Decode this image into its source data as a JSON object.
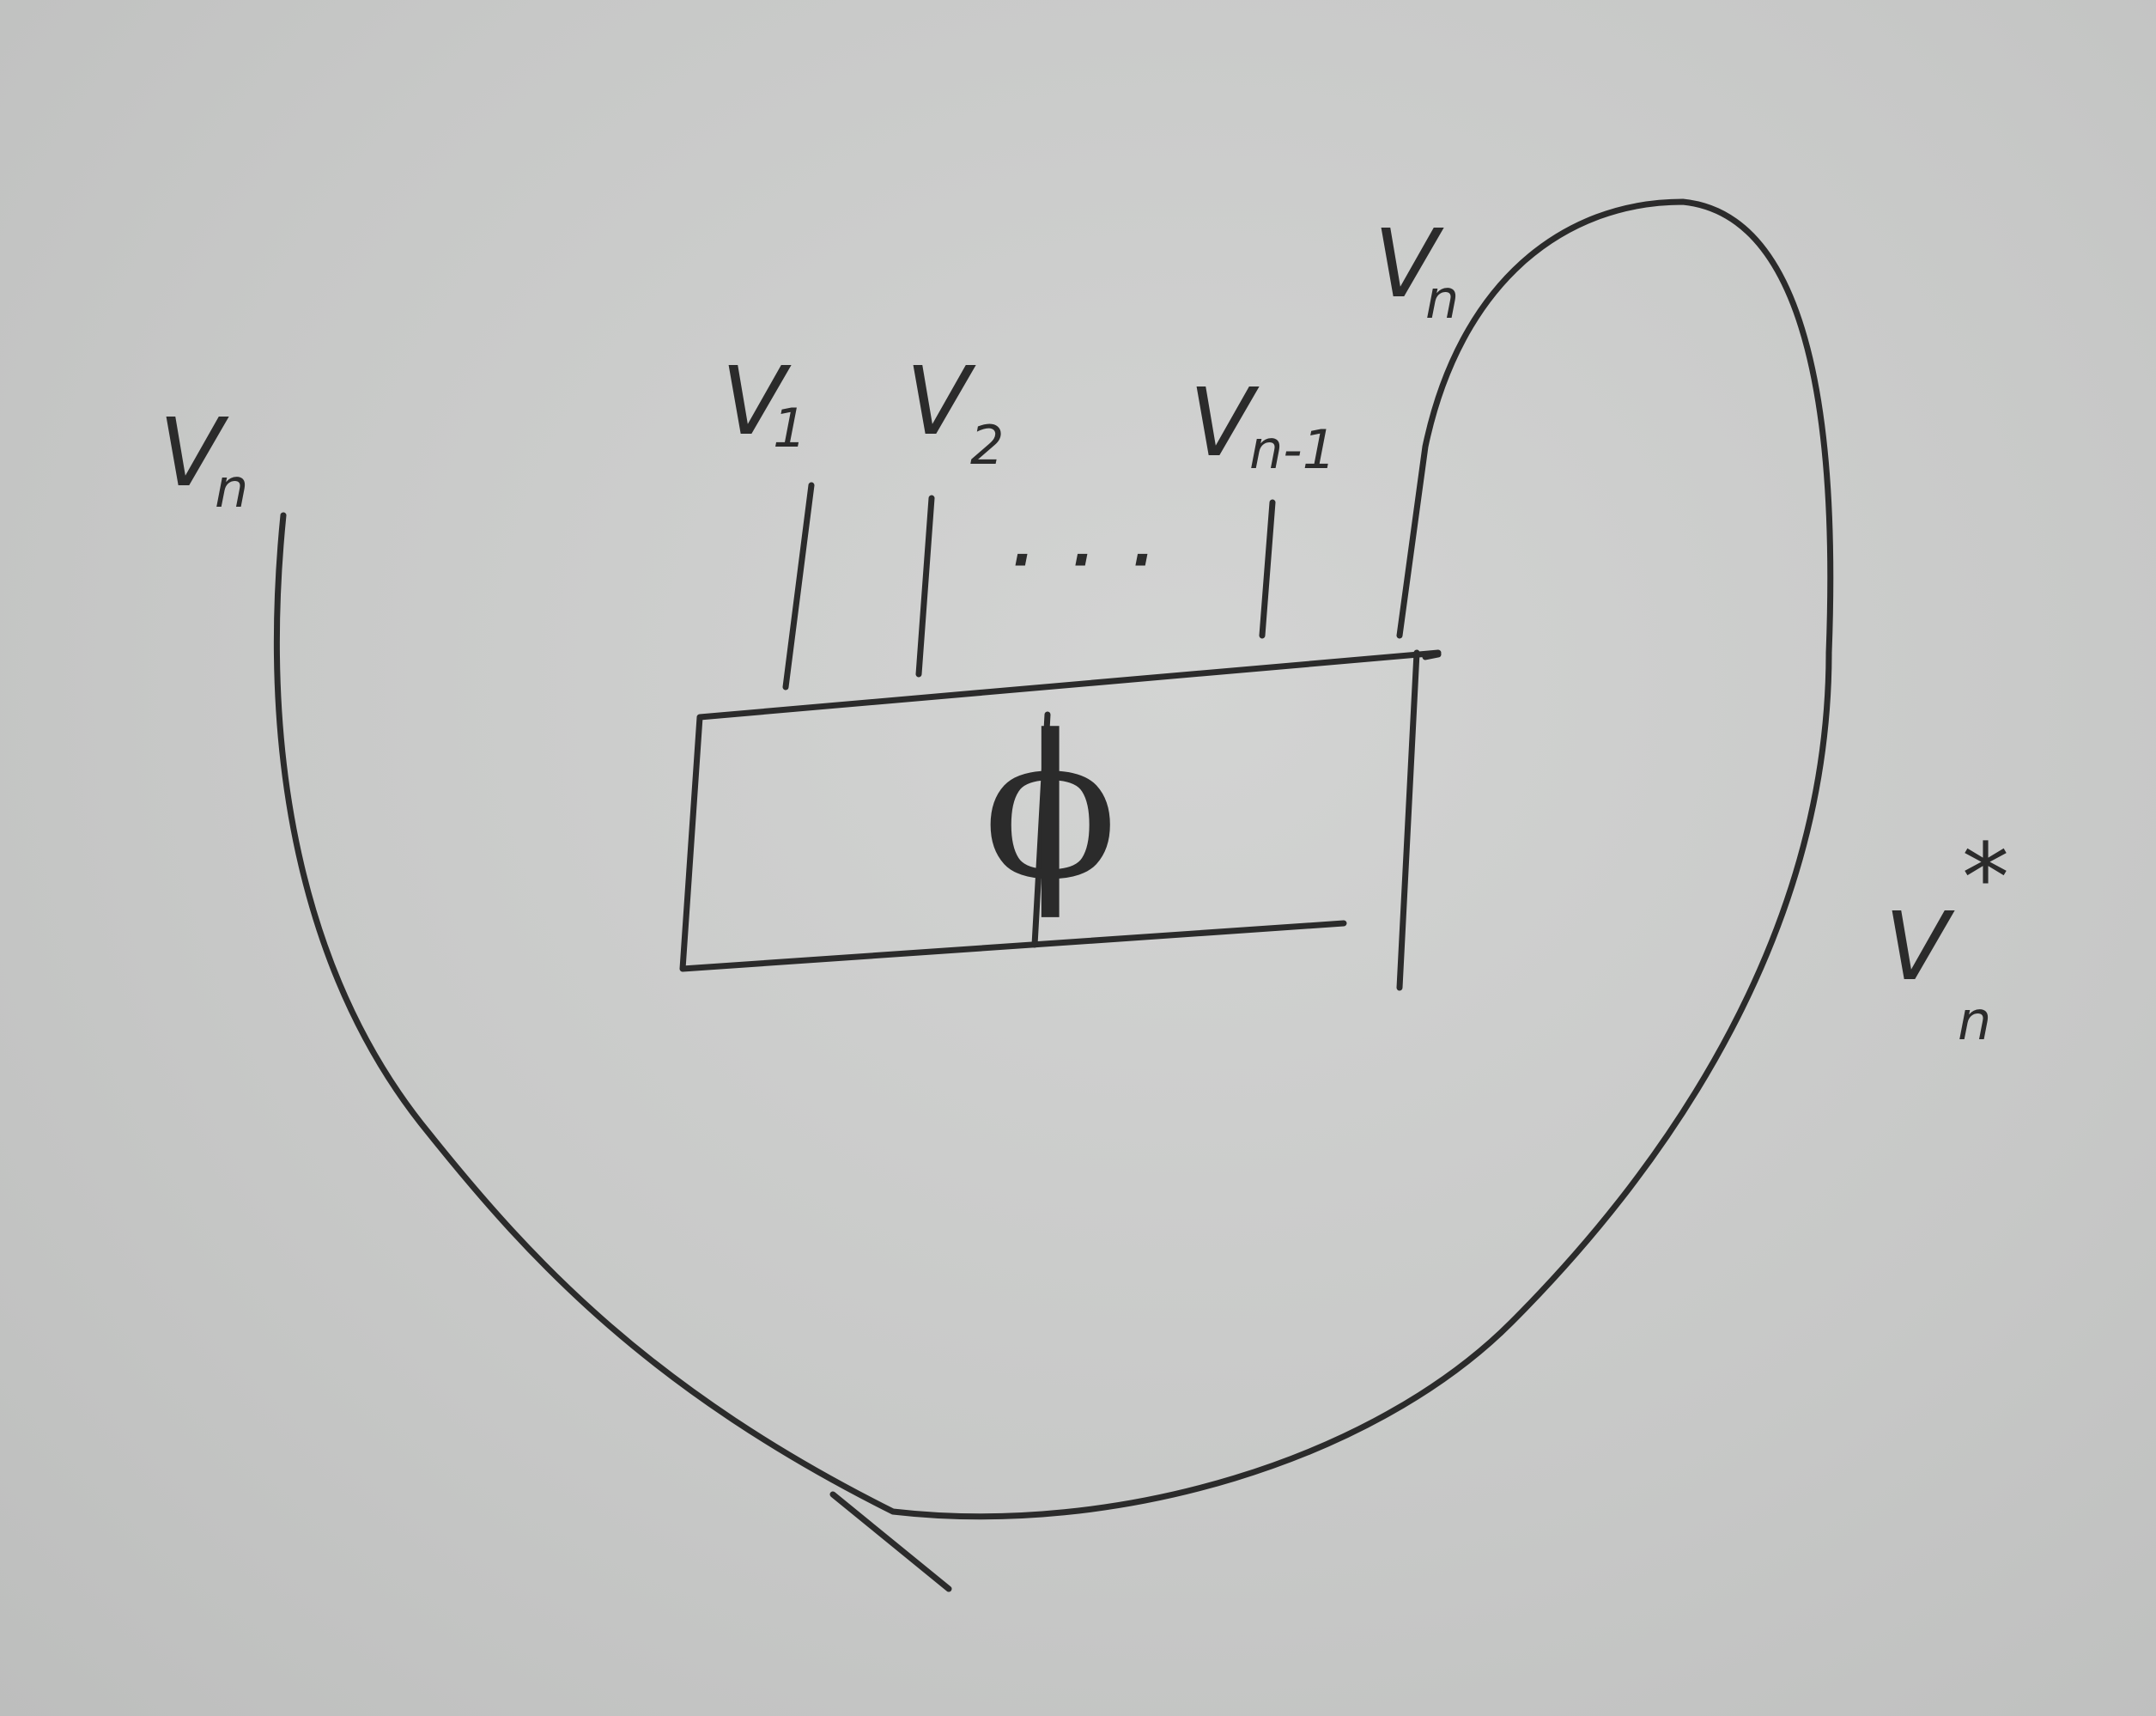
{
  "labels": {
    "left_strand": {
      "base": "V",
      "sub": "n"
    },
    "strand_1": {
      "base": "V",
      "sub": "1"
    },
    "strand_2": {
      "base": "V",
      "sub": "2"
    },
    "strand_n_minus_1": {
      "base": "V",
      "sub": "n-1"
    },
    "ellipsis": "· · ·",
    "loop_top": {
      "base": "V",
      "sub": "n"
    },
    "dual": {
      "base": "V",
      "sub": "n",
      "sup": "*"
    },
    "box": "ϕ"
  },
  "colors": {
    "ink": "#2b2b2b",
    "paper": "#c9cac9"
  }
}
